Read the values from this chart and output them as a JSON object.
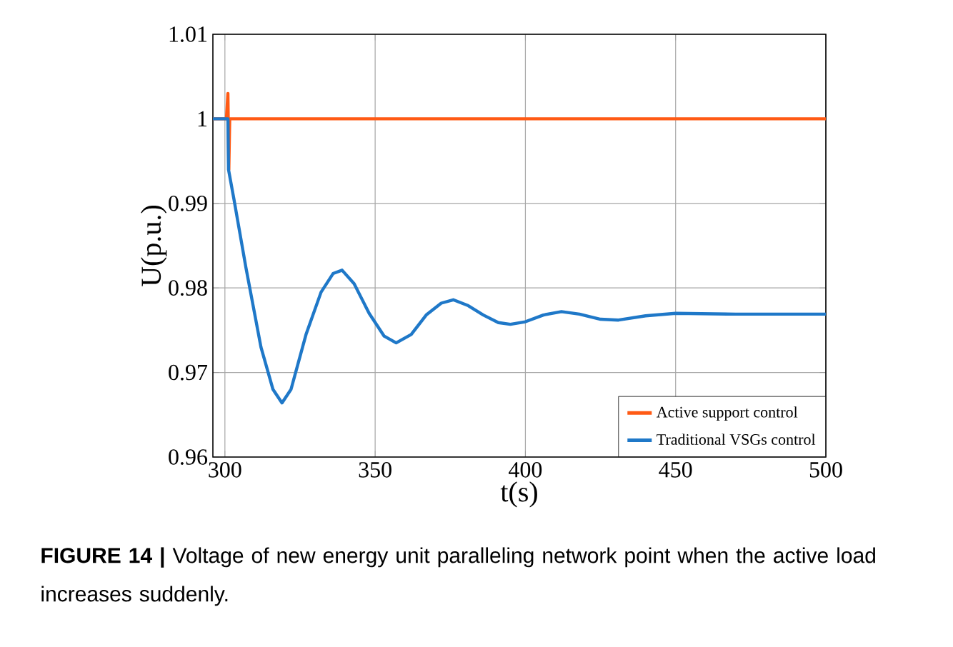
{
  "chart_data": {
    "type": "line",
    "xlabel": "t(s)",
    "ylabel": "U(p.u.)",
    "xlim": [
      296,
      500
    ],
    "ylim": [
      0.96,
      1.01
    ],
    "xticks": [
      300,
      350,
      400,
      450,
      500
    ],
    "yticks": [
      0.96,
      0.97,
      0.98,
      0.99,
      1,
      1.01
    ],
    "grid": true,
    "legend": "bottom right",
    "marker": "none",
    "line_style": "solid",
    "series": [
      {
        "name": "Active support control",
        "color": "#ff5a14",
        "x": [
          296,
          300.5,
          301,
          301.3,
          301.6,
          500
        ],
        "values": [
          1,
          1,
          1.003,
          0.994,
          1,
          1
        ]
      },
      {
        "name": "Traditional VSGs control",
        "color": "#1f78c8",
        "x": [
          296,
          301,
          301.2,
          303,
          307,
          312,
          316,
          319,
          322,
          327,
          332,
          336,
          339,
          343,
          348,
          353,
          357,
          362,
          367,
          372,
          376,
          381,
          386,
          391,
          395,
          400,
          406,
          412,
          418,
          425,
          431,
          440,
          450,
          470,
          500
        ],
        "values": [
          1,
          1,
          0.994,
          0.9905,
          0.9824,
          0.973,
          0.968,
          0.9664,
          0.968,
          0.9745,
          0.9795,
          0.9817,
          0.9821,
          0.9805,
          0.977,
          0.9743,
          0.9735,
          0.9745,
          0.9768,
          0.9782,
          0.9786,
          0.9779,
          0.9768,
          0.9759,
          0.9757,
          0.976,
          0.9768,
          0.9772,
          0.9769,
          0.9763,
          0.9762,
          0.9767,
          0.977,
          0.9769,
          0.9769
        ]
      }
    ],
    "annotations": [
      "**FIGURE 14 |** Voltage of new energy unit paralleling network point when the active load increases suddenly."
    ]
  }
}
